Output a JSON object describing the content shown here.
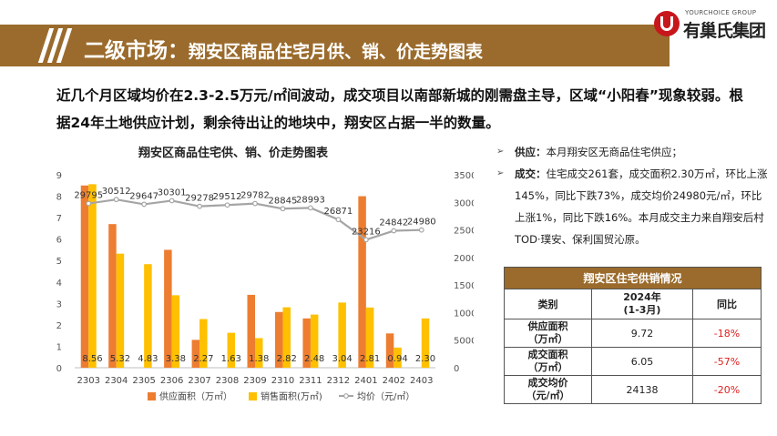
{
  "header": {
    "title_main": "二级市场：",
    "title_sub": "翔安区商品住宅月供、销、价走势图表"
  },
  "logo": {
    "en": "YOURCHOICE GROUP",
    "cn": "有巢氏集团"
  },
  "summary": "近几个月区域均价在2.3-2.5万元/㎡间波动，成交项目以南部新城的刚需盘主导，区域“小阳春”现象较弱。根据24年土地供应计划，剩余待出让的地块中，翔安区占据一半的数量。",
  "bullets": [
    {
      "label": "供应：",
      "text": "本月翔安区无商品住宅供应；"
    },
    {
      "label": "成交：",
      "text": "住宅成交261套，成交面积2.30万㎡，环比上涨145%，同比下跌73%，成交均价24980元/㎡，环比上涨1%，同比下跌16%。本月成交主力来自翔安后村TOD·璞安、保利国贸沁原。"
    }
  ],
  "table": {
    "title": "翔安区住宅供销情况",
    "headers": [
      "类别",
      "2024年\n(1-3月)",
      "同比"
    ],
    "rows": [
      {
        "label": "供应面积\n（万㎡）",
        "value": "9.72",
        "yoy": "-18%"
      },
      {
        "label": "成交面积\n（万㎡）",
        "value": "6.05",
        "yoy": "-57%"
      },
      {
        "label": "成交均价\n（元/㎡）",
        "value": "24138",
        "yoy": "-20%"
      }
    ]
  },
  "chart_data": {
    "type": "bar",
    "title": "翔安区商品住宅供、销、价走势图表",
    "categories": [
      "2303",
      "2304",
      "2305",
      "2306",
      "2307",
      "2308",
      "2309",
      "2310",
      "2311",
      "2312",
      "2401",
      "2402",
      "2403"
    ],
    "series": [
      {
        "name": "供应面积（万㎡）",
        "type": "bar",
        "axis": "left",
        "color": "#ed7d31",
        "values": [
          8.5,
          6.7,
          0,
          5.5,
          1.3,
          0,
          3.4,
          2.6,
          2.3,
          0,
          8.0,
          1.6,
          0
        ]
      },
      {
        "name": "销售面积(万㎡)",
        "type": "bar",
        "axis": "left",
        "color": "#ffc000",
        "values": [
          8.56,
          5.32,
          4.83,
          3.38,
          2.27,
          1.63,
          1.38,
          2.82,
          2.48,
          3.04,
          2.81,
          0.94,
          2.3
        ],
        "labels": [
          "8.56",
          "5.32",
          "4.83",
          "3.38",
          "2.27",
          "1.63",
          "1.38",
          "2.82",
          "2.48",
          "3.04",
          "2.81",
          "0.94",
          "2.30"
        ]
      },
      {
        "name": "均价（元/㎡）",
        "type": "line",
        "axis": "right",
        "color": "#a5a5a5",
        "values": [
          29795,
          30512,
          29647,
          30301,
          29278,
          29512,
          29782,
          28845,
          28993,
          26871,
          23216,
          24842,
          24980
        ],
        "labels": [
          "29795",
          "30512",
          "29647",
          "30301",
          "29278",
          "29512",
          "29782",
          "28845",
          "28993",
          "26871",
          "23216",
          "24842",
          "24980"
        ]
      }
    ],
    "left_ticks": [
      "0",
      "1",
      "2",
      "3",
      "4",
      "5",
      "6",
      "7",
      "8",
      "9"
    ],
    "right_ticks": [
      "0",
      "5000",
      "10000",
      "15000",
      "20000",
      "25000",
      "30000",
      "35000"
    ],
    "ylim_left": [
      0,
      9
    ],
    "ylim_right": [
      0,
      35000
    ],
    "legend_position": "bottom",
    "grid": false
  }
}
